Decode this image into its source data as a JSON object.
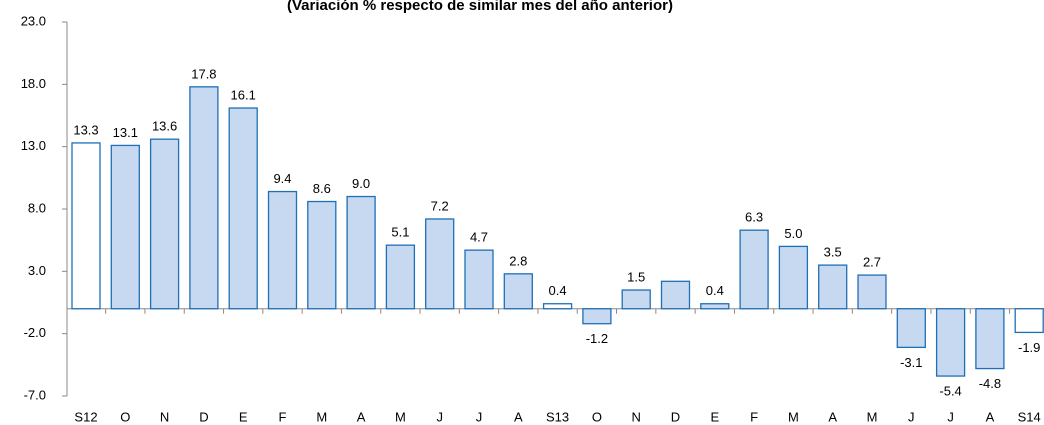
{
  "chart_data": {
    "type": "bar",
    "title": "(Variación % respecto de similar mes del año anterior)",
    "categories": [
      "S12",
      "O",
      "N",
      "D",
      "E",
      "F",
      "M",
      "A",
      "M",
      "J",
      "J",
      "A",
      "S13",
      "O",
      "N",
      "D",
      "E",
      "F",
      "M",
      "A",
      "M",
      "J",
      "J",
      "A",
      "S14"
    ],
    "values": [
      13.3,
      13.1,
      13.6,
      17.8,
      16.1,
      9.4,
      8.6,
      9.0,
      5.1,
      7.2,
      4.7,
      2.8,
      0.4,
      -1.2,
      1.5,
      2.2,
      0.4,
      6.3,
      5.0,
      3.5,
      2.7,
      -3.1,
      -5.4,
      -4.8,
      -1.9
    ],
    "value_labels": [
      "13.3",
      "13.1",
      "13.6",
      "17.8",
      "16.1",
      "9.4",
      "8.6",
      "9.0",
      "5.1",
      "7.2",
      "4.7",
      "2.8",
      "0.4",
      "-1.2",
      "1.5",
      null,
      "0.4",
      "6.3",
      "5.0",
      "3.5",
      "2.7",
      "-3.1",
      "-5.4",
      "-4.8",
      "-1.9"
    ],
    "colors": [
      "#ffffff",
      "#c6d9f1",
      "#c6d9f1",
      "#c6d9f1",
      "#c6d9f1",
      "#c6d9f1",
      "#c6d9f1",
      "#c6d9f1",
      "#c6d9f1",
      "#c6d9f1",
      "#c6d9f1",
      "#c6d9f1",
      "#ffffff",
      "#c6d9f1",
      "#c6d9f1",
      "#c6d9f1",
      "#c6d9f1",
      "#c6d9f1",
      "#c6d9f1",
      "#c6d9f1",
      "#c6d9f1",
      "#c6d9f1",
      "#c6d9f1",
      "#c6d9f1",
      "#ffffff"
    ],
    "edge_color": "#1f6fb5",
    "ylim": [
      -7,
      23
    ],
    "yticks": [
      {
        "value": -7,
        "label": "-7.0"
      },
      {
        "value": -2,
        "label": "-2.0"
      },
      {
        "value": 3,
        "label": "3.0"
      },
      {
        "value": 8,
        "label": "8.0"
      },
      {
        "value": 13,
        "label": "13.0"
      },
      {
        "value": 18,
        "label": "18.0"
      },
      {
        "value": 23,
        "label": "23.0"
      }
    ],
    "grid": false
  }
}
